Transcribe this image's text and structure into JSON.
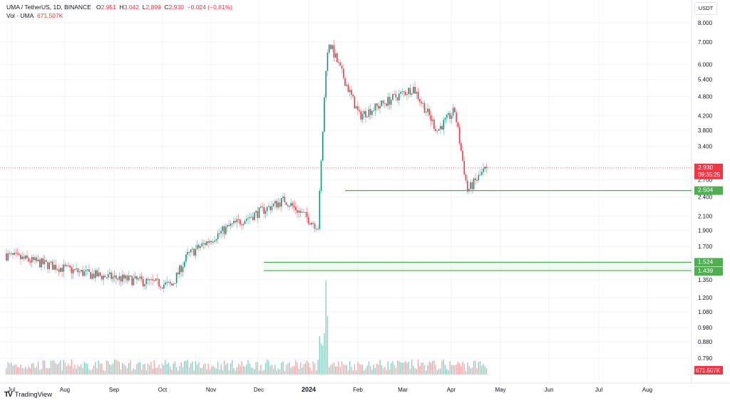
{
  "header": {
    "symbol": "UMA / TetherUS, 1D, BINANCE",
    "open_label": "O",
    "open": "2.951",
    "high_label": "H",
    "high": "3.042",
    "low_label": "L",
    "low": "2.899",
    "close_label": "C",
    "close": "2.930",
    "change": "−0.024 (−0.81%)",
    "vol_label": "Vol · UMA",
    "vol_value": "671.507K"
  },
  "currency_button": "USDT",
  "footer": {
    "logo_glyph": "TV",
    "brand": "TradingView"
  },
  "colors": {
    "up": "#089981",
    "down": "#f23645",
    "up_vol": "#8ad1c5",
    "down_vol": "#f7a9ae",
    "level": "#4caf50",
    "grid": "#f0f3fa",
    "text": "#131722"
  },
  "chart_data": {
    "type": "candlestick",
    "title": "UMA / TetherUS, 1D, BINANCE",
    "price_scale": "log",
    "price_axis_ticks": [
      "8.000",
      "7.000",
      "6.000",
      "5.400",
      "4.800",
      "4.200",
      "3.800",
      "3.400",
      "2.700",
      "2.400",
      "2.100",
      "1.900",
      "1.700",
      "1.350",
      "1.200",
      "1.080",
      "0.980",
      "0.880",
      "0.790"
    ],
    "time_axis_ticks": [
      "Jul",
      "Aug",
      "Sep",
      "Oct",
      "Nov",
      "Dec",
      "2024",
      "Feb",
      "Mar",
      "Apr",
      "May",
      "Jun",
      "Jul",
      "Aug"
    ],
    "last_price": {
      "value": "2.930",
      "countdown": "09:35:25",
      "color": "#f23645"
    },
    "horizontal_levels": [
      {
        "value": "2.504",
        "color": "#4caf50"
      },
      {
        "value": "1.524",
        "color": "#4caf50"
      },
      {
        "value": "1.439",
        "color": "#4caf50"
      }
    ],
    "volume_last": "671.507K",
    "approx_path": [
      {
        "date": "2023-07",
        "close": 1.6
      },
      {
        "date": "2023-08-20",
        "close": 1.4
      },
      {
        "date": "2023-10-10",
        "close": 1.3
      },
      {
        "date": "2023-10-20",
        "close": 1.6
      },
      {
        "date": "2023-11-15",
        "close": 1.95
      },
      {
        "date": "2023-12-20",
        "close": 2.35
      },
      {
        "date": "2024-01-10",
        "close": 1.95
      },
      {
        "date": "2024-01-15",
        "close": 5.9
      },
      {
        "date": "2024-01-17",
        "close": 7.0
      },
      {
        "date": "2024-02-05",
        "close": 4.2
      },
      {
        "date": "2024-03-10",
        "close": 5.1
      },
      {
        "date": "2024-03-25",
        "close": 3.8
      },
      {
        "date": "2024-04-05",
        "close": 4.35
      },
      {
        "date": "2024-04-13",
        "close": 2.5
      },
      {
        "date": "2024-04-25",
        "close": 2.93
      }
    ],
    "grid": true
  }
}
